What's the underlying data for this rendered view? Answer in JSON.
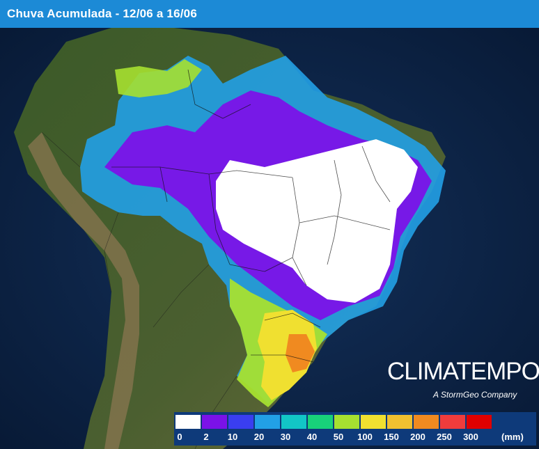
{
  "header": {
    "title": "Chuva Acumulada - 12/06 a 16/06"
  },
  "brand": {
    "name": "CLIMATEMPO",
    "tagline": "A StormGeo Company"
  },
  "legend": {
    "unit": "(mm)",
    "labels": [
      "0",
      "2",
      "10",
      "20",
      "30",
      "40",
      "50",
      "100",
      "150",
      "200",
      "250",
      "300"
    ],
    "colors": [
      "#ffffff",
      "#7b12e8",
      "#3a3ef0",
      "#22a0e6",
      "#12c6c6",
      "#18d27a",
      "#a6e030",
      "#f0e030",
      "#f0c030",
      "#f08a20",
      "#f03c3c",
      "#e00000"
    ]
  },
  "map": {
    "ocean_color": "#0c2244",
    "land_color": "#3f5a2c",
    "andes_color": "#8a7650"
  }
}
